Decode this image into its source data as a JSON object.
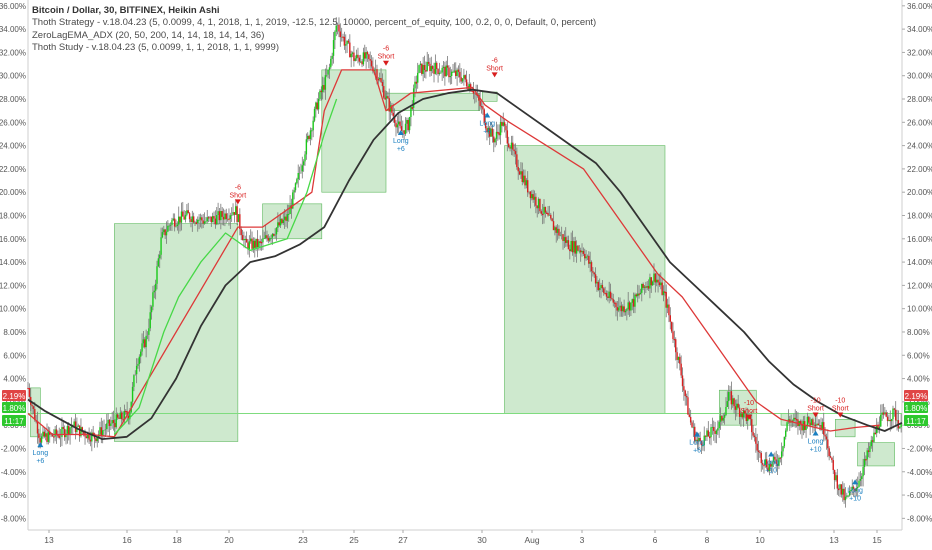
{
  "legend": {
    "title": "Bitcoin / Dollar, 30, BITFINEX, Heikin Ashi",
    "line2": "Thoth Strategy - v.18.04.23 (5, 0.0099, 4, 1, 2018, 1, 1, 2019, -12.5, 12.5, 10000, percent_of_equity, 100, 0.2, 0, 0, Default, 0, percent)",
    "line3": "ZeroLagEMA_ADX (20, 50, 200, 14, 14, 18, 14, 14, 36)",
    "line4": "Thoth Study - v.18.04.23 (5, 0.0099, 1, 1, 2018, 1, 1, 9999)"
  },
  "colors": {
    "bull": "#19c819",
    "bear": "#d81e1e",
    "wick": "#777777",
    "zone_fill": "#c9e7c9",
    "zone_stroke": "#5cb85c",
    "slow_ma": "#333333",
    "red_ma": "#dd3838",
    "green_ma": "#47d847",
    "long": "#1a7fc0",
    "short": "#d81e1e",
    "tag_red": "#e04545",
    "tag_green": "#2ec82e",
    "hline": "#7fdc7f"
  },
  "chart_data": {
    "type": "line",
    "y_unit": "percent",
    "ylim": [
      -9,
      36.5
    ],
    "xlim": [
      12.5,
      15.6
    ],
    "y_ticks": [
      "-8.00%",
      "-6.00%",
      "-4.00%",
      "-2.00%",
      "0.00%",
      "2.00%",
      "4.00%",
      "6.00%",
      "8.00%",
      "10.00%",
      "12.00%",
      "14.00%",
      "16.00%",
      "18.00%",
      "20.00%",
      "22.00%",
      "24.00%",
      "26.00%",
      "28.00%",
      "30.00%",
      "32.00%",
      "34.00%",
      "36.00%"
    ],
    "x_ticks": [
      "13",
      "16",
      "18",
      "20",
      "23",
      "25",
      "27",
      "30",
      "Aug",
      "3",
      "6",
      "8",
      "10",
      "13",
      "15"
    ],
    "price_path": [
      [
        12.5,
        3.2
      ],
      [
        12.8,
        0.5
      ],
      [
        13.0,
        -1.2
      ],
      [
        13.2,
        -1.0
      ],
      [
        13.8,
        -0.8
      ],
      [
        14.3,
        0.0
      ],
      [
        14.6,
        -0.5
      ],
      [
        15.2,
        -1.0
      ],
      [
        15.6,
        -0.3
      ],
      [
        16.0,
        0.3
      ],
      [
        16.6,
        1.0
      ],
      [
        16.9,
        5.5
      ],
      [
        17.3,
        7.5
      ],
      [
        17.5,
        10.0
      ],
      [
        17.9,
        16.0
      ],
      [
        18.3,
        17.5
      ],
      [
        19.0,
        18.0
      ],
      [
        19.7,
        17.5
      ],
      [
        20.4,
        18.0
      ],
      [
        20.9,
        18.5
      ],
      [
        21.3,
        15.5
      ],
      [
        21.9,
        15.5
      ],
      [
        22.5,
        16.8
      ],
      [
        23.0,
        17.8
      ],
      [
        23.3,
        20.0
      ],
      [
        23.7,
        23.5
      ],
      [
        24.2,
        27.5
      ],
      [
        24.7,
        30.5
      ],
      [
        25.0,
        34.5
      ],
      [
        25.3,
        33.0
      ],
      [
        25.7,
        31.5
      ],
      [
        26.2,
        31.5
      ],
      [
        26.6,
        30.5
      ],
      [
        27.1,
        27.5
      ],
      [
        27.6,
        25.2
      ],
      [
        27.9,
        25.8
      ],
      [
        28.3,
        30.5
      ],
      [
        28.8,
        30.8
      ],
      [
        29.5,
        30.3
      ],
      [
        30.0,
        30.0
      ],
      [
        30.5,
        29.0
      ],
      [
        30.9,
        27.0
      ],
      [
        31.1,
        25.5
      ],
      [
        31.4,
        24.5
      ],
      [
        31.7,
        26.0
      ],
      [
        32.2,
        23.0
      ],
      [
        32.7,
        20.5
      ],
      [
        33.3,
        18.5
      ],
      [
        33.8,
        17.0
      ],
      [
        34.4,
        15.5
      ],
      [
        35.0,
        15.0
      ],
      [
        35.6,
        12.0
      ],
      [
        36.0,
        11.0
      ],
      [
        36.5,
        10.0
      ],
      [
        37.0,
        10.5
      ],
      [
        37.5,
        12.0
      ],
      [
        37.9,
        12.8
      ],
      [
        38.3,
        11.0
      ],
      [
        38.9,
        5.0
      ],
      [
        39.3,
        0.5
      ],
      [
        39.6,
        -1.5
      ],
      [
        40.0,
        -1.0
      ],
      [
        40.5,
        0.0
      ],
      [
        40.9,
        2.5
      ],
      [
        41.2,
        1.5
      ],
      [
        41.7,
        0.5
      ],
      [
        42.1,
        -2.5
      ],
      [
        42.5,
        -3.5
      ],
      [
        42.9,
        -3.0
      ],
      [
        43.3,
        0.5
      ],
      [
        43.8,
        0.0
      ],
      [
        44.4,
        0.5
      ],
      [
        44.8,
        -0.5
      ],
      [
        45.1,
        -4.0
      ],
      [
        45.6,
        -6.5
      ],
      [
        46.1,
        -5.0
      ],
      [
        46.6,
        -2.0
      ],
      [
        47.0,
        0.5
      ],
      [
        47.6,
        1.0
      ],
      [
        47.9,
        -0.5
      ]
    ],
    "slow_ma": [
      [
        12.5,
        2.2
      ],
      [
        13.2,
        1.2
      ],
      [
        14.5,
        -0.3
      ],
      [
        15.5,
        -1.2
      ],
      [
        16.5,
        -1.0
      ],
      [
        17.5,
        0.6
      ],
      [
        18.5,
        4.0
      ],
      [
        19.5,
        8.5
      ],
      [
        20.5,
        12.0
      ],
      [
        21.5,
        14.0
      ],
      [
        22.5,
        14.5
      ],
      [
        23.5,
        15.5
      ],
      [
        24.5,
        17.0
      ],
      [
        25.5,
        21.0
      ],
      [
        26.5,
        24.5
      ],
      [
        27.5,
        26.8
      ],
      [
        28.5,
        28.0
      ],
      [
        29.5,
        28.5
      ],
      [
        30.5,
        28.8
      ],
      [
        31.5,
        28.5
      ],
      [
        32.5,
        27.0
      ],
      [
        33.5,
        25.5
      ],
      [
        34.5,
        24.0
      ],
      [
        35.5,
        22.5
      ],
      [
        36.5,
        20.0
      ],
      [
        37.5,
        17.0
      ],
      [
        38.5,
        14.0
      ],
      [
        39.5,
        12.0
      ],
      [
        40.5,
        10.0
      ],
      [
        41.5,
        8.0
      ],
      [
        42.5,
        5.5
      ],
      [
        43.5,
        3.5
      ],
      [
        44.5,
        2.0
      ],
      [
        45.5,
        0.8
      ],
      [
        46.5,
        0.0
      ],
      [
        47.2,
        -0.5
      ],
      [
        47.9,
        0.2
      ]
    ],
    "red_ma": [
      [
        12.5,
        1.0
      ],
      [
        13.5,
        -0.8
      ],
      [
        15.0,
        -0.8
      ],
      [
        16.0,
        -1.0
      ],
      [
        21.0,
        17.0
      ],
      [
        22.0,
        17.0
      ],
      [
        24.0,
        20.0
      ],
      [
        24.5,
        27.0
      ],
      [
        25.2,
        30.5
      ],
      [
        26.5,
        30.5
      ],
      [
        27.0,
        27.0
      ],
      [
        28.0,
        28.5
      ],
      [
        30.5,
        29.0
      ],
      [
        31.0,
        27.5
      ],
      [
        32.0,
        26.0
      ],
      [
        33.5,
        24.0
      ],
      [
        35.0,
        22.0
      ],
      [
        36.0,
        19.0
      ],
      [
        37.0,
        16.0
      ],
      [
        38.0,
        13.0
      ],
      [
        39.0,
        11.0
      ],
      [
        40.0,
        8.0
      ],
      [
        41.0,
        5.0
      ],
      [
        42.0,
        2.0
      ],
      [
        43.0,
        0.5
      ],
      [
        44.0,
        0.0
      ],
      [
        45.0,
        -0.5
      ],
      [
        46.0,
        -0.2
      ],
      [
        47.0,
        0.0
      ]
    ],
    "green_ma": [
      [
        16.0,
        -0.8
      ],
      [
        17.0,
        1.5
      ],
      [
        18.0,
        8.0
      ],
      [
        18.6,
        11.0
      ],
      [
        19.5,
        14.0
      ],
      [
        20.5,
        16.5
      ],
      [
        21.5,
        15.0
      ],
      [
        23.0,
        16.0
      ],
      [
        23.8,
        20.0
      ],
      [
        24.5,
        25.0
      ],
      [
        25.0,
        28.0
      ]
    ],
    "trade_zones": [
      {
        "x0": 12.6,
        "x1": 13.0,
        "y0": -1.0,
        "y1": 3.2
      },
      {
        "x0": 16.0,
        "x1": 21.0,
        "y0": -1.4,
        "y1": 17.3
      },
      {
        "x0": 22.0,
        "x1": 24.4,
        "y0": 16.0,
        "y1": 19.0
      },
      {
        "x0": 24.4,
        "x1": 27.0,
        "y0": 20.0,
        "y1": 30.5
      },
      {
        "x0": 27.0,
        "x1": 30.8,
        "y0": 27.0,
        "y1": 28.5
      },
      {
        "x0": 30.9,
        "x1": 31.5,
        "y0": 27.8,
        "y1": 28.6
      },
      {
        "x0": 31.8,
        "x1": 38.3,
        "y0": 1.0,
        "y1": 24.0
      },
      {
        "x0": 40.5,
        "x1": 42.0,
        "y0": 0.0,
        "y1": 3.0
      },
      {
        "x0": 43.0,
        "x1": 44.4,
        "y0": 0.0,
        "y1": 1.0
      },
      {
        "x0": 45.2,
        "x1": 46.0,
        "y0": -1.0,
        "y1": 0.5
      },
      {
        "x0": 46.1,
        "x1": 47.6,
        "y0": -3.5,
        "y1": -1.5
      }
    ],
    "signals": [
      {
        "type": "long",
        "x": 13.0,
        "y": -1.8,
        "label": "Long",
        "value": "+6"
      },
      {
        "type": "short",
        "x": 21.0,
        "y": 19.3,
        "label": "Short",
        "value": "-6"
      },
      {
        "type": "short",
        "x": 27.0,
        "y": 31.2,
        "label": "Short",
        "value": "-6"
      },
      {
        "type": "long",
        "x": 27.6,
        "y": 25.0,
        "label": "Long",
        "value": "+6"
      },
      {
        "type": "short",
        "x": 31.4,
        "y": 30.2,
        "label": "Short",
        "value": "-6"
      },
      {
        "type": "long",
        "x": 31.1,
        "y": 26.5,
        "label": "Long",
        "value": "+6"
      },
      {
        "type": "long",
        "x": 39.6,
        "y": -0.9,
        "label": "Long",
        "value": "+6"
      },
      {
        "type": "short",
        "x": 41.7,
        "y": 0.8,
        "label": "Short",
        "value": "-10"
      },
      {
        "type": "long",
        "x": 42.6,
        "y": -2.6,
        "label": "Long",
        "value": "+10"
      },
      {
        "type": "short",
        "x": 44.4,
        "y": 1.0,
        "label": "Short",
        "value": "-10"
      },
      {
        "type": "long",
        "x": 44.4,
        "y": -0.8,
        "label": "Long",
        "value": "+10"
      },
      {
        "type": "short",
        "x": 45.4,
        "y": 1.0,
        "label": "Short",
        "value": "-10"
      },
      {
        "type": "long",
        "x": 46.0,
        "y": -5.0,
        "label": "Long",
        "value": "+10"
      }
    ],
    "price_tags": [
      {
        "text": "2.19%",
        "y": 2.19,
        "kind": "red"
      },
      {
        "text": "1.80%",
        "y": 1.0,
        "kind": "green"
      },
      {
        "text": "11:17",
        "y": 0.0,
        "kind": "green"
      }
    ],
    "hline": 1.0
  }
}
